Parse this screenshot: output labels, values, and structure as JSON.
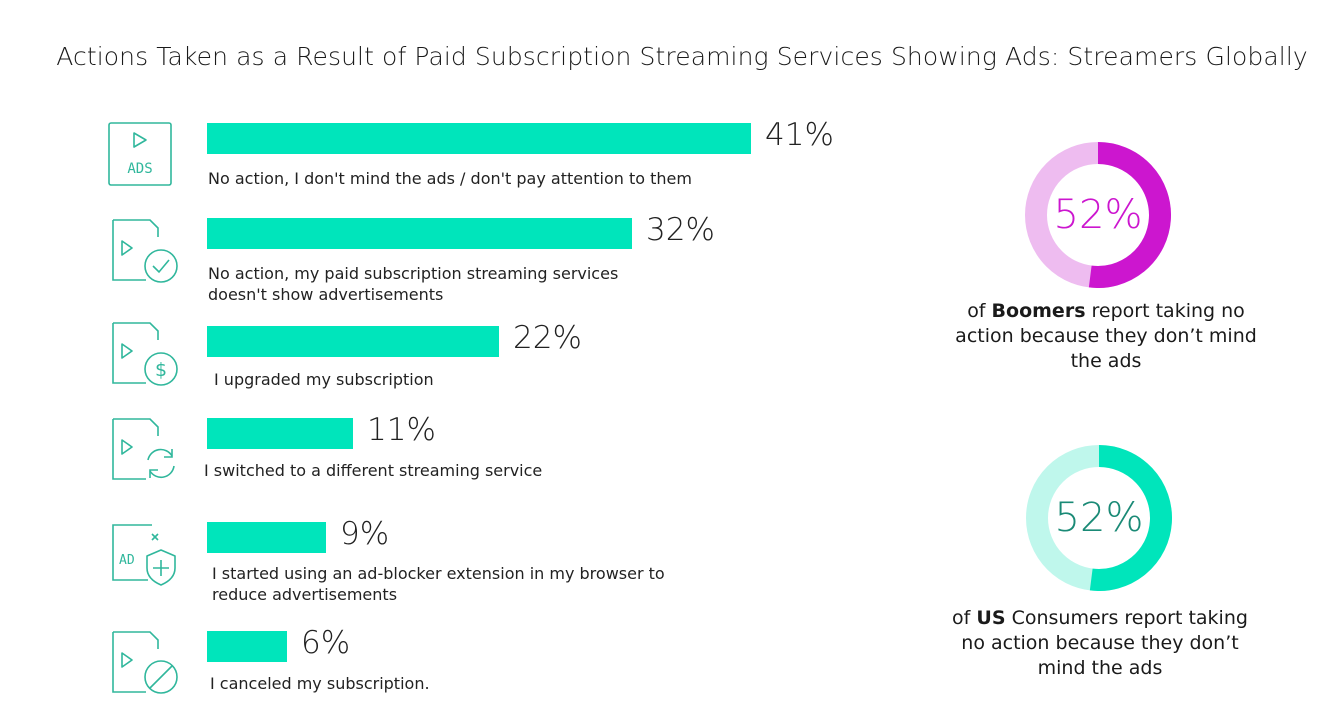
{
  "chart_data": [
    {
      "type": "bar",
      "orientation": "horizontal",
      "title": "Actions Taken as a Result of Paid Subscription Streaming Services Showing Ads: Streamers Globally",
      "categories": [
        "No action, I don't mind the ads / don't pay attention to them",
        "No action, my paid subscription streaming services doesn't show advertisements",
        "I upgraded my subscription",
        "I switched to a different streaming service",
        "I started using an ad-blocker extension in my browser to reduce advertisements",
        "I canceled my subscription."
      ],
      "category_lines": [
        [
          "No action, I don't mind the ads / don't pay attention to them"
        ],
        [
          "No action, my paid subscription streaming services",
          "doesn't show advertisements"
        ],
        [
          "I upgraded my subscription"
        ],
        [
          "I switched to a different streaming service"
        ],
        [
          "I started using an ad-blocker extension in my browser to",
          "reduce advertisements"
        ],
        [
          "I canceled my subscription."
        ]
      ],
      "values": [
        41,
        32,
        22,
        11,
        9,
        6
      ],
      "value_labels": [
        "41%",
        "32%",
        "22%",
        "11%",
        "9%",
        "6%"
      ],
      "icons": [
        "ads-video-icon",
        "video-check-icon",
        "video-dollar-icon",
        "video-switch-icon",
        "ad-blocker-shield-icon",
        "video-cancel-icon"
      ],
      "bar_color": "#00e5bb",
      "grid": false,
      "legend": "none"
    },
    {
      "type": "pie",
      "variant": "donut",
      "value": 52,
      "label": "52%",
      "caption_pre": "of ",
      "caption_bold": "Boomers",
      "caption_post": " report taking no action because they don’t mind the ads",
      "color": "#cc16cf",
      "track_color": "#eebcf0"
    },
    {
      "type": "pie",
      "variant": "donut",
      "value": 52,
      "label": "52%",
      "caption_pre": "of ",
      "caption_bold": "US",
      "caption_post": " Consumers report taking no action because they don’t mind the ads",
      "color": "#00e5bb",
      "track_color": "#bff7ec",
      "label_color": "#1a8a76"
    }
  ]
}
